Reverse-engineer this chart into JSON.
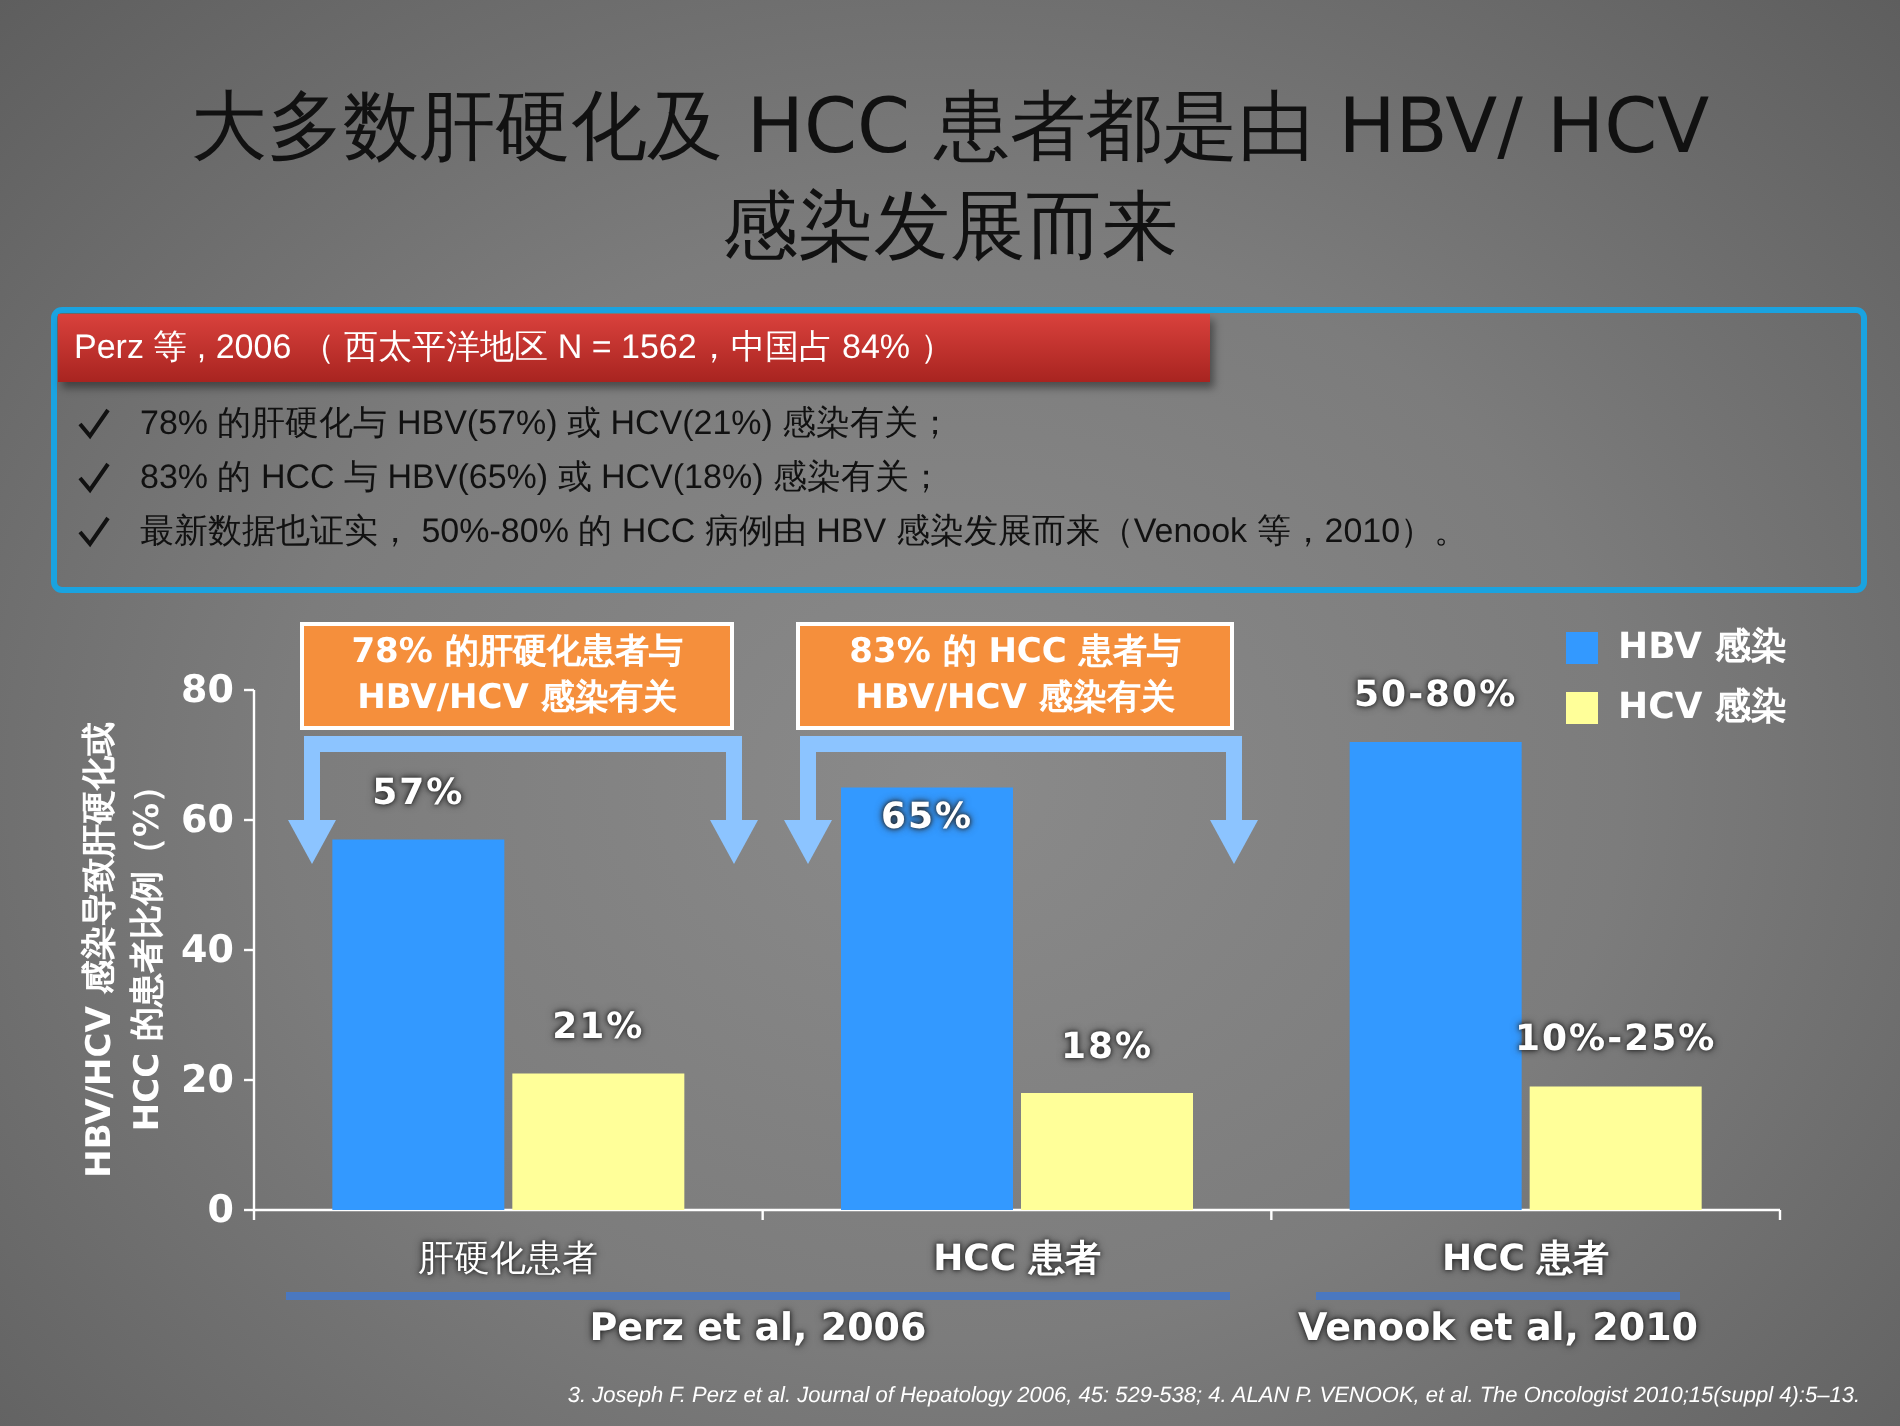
{
  "chart_data": {
    "type": "bar",
    "title": "大多数肝硬化及 HCC 患者都是由 HBV/ HCV 感染发展而来",
    "ylabel": "HBV/HCV 感染导致肝硬化或 HCC 的患者比例（%）",
    "categories": [
      "肝硬化患者",
      "HCC 患者",
      "HCC 患者"
    ],
    "series": [
      {
        "name": "HBV 感染",
        "color": "#3399ff",
        "values": [
          57,
          65,
          72
        ],
        "value_labels": [
          "57%",
          "65%",
          null
        ]
      },
      {
        "name": "HCV 感染",
        "color": "#ffff99",
        "values": [
          21,
          18,
          19
        ],
        "value_labels": [
          "21%",
          "18%",
          null
        ]
      }
    ],
    "ylim": [
      0,
      80
    ],
    "yticks": [
      0,
      20,
      40,
      60,
      80
    ],
    "legend": "top right",
    "annotations": [
      "Perz 等 , 2006 （ 西太平洋地区  N = 1562，中国占 84% ）",
      "78% 的肝硬化与 HBV(57%) 或 HCV(21%) 感染有关；",
      "83% 的 HCC 与 HBV(65%) 或 HCV(18%) 感染有关；",
      "最新数据也证实， 50%-80% 的 HCC 病例由 HBV 感染发展而来（Venook 等，2010）。",
      "78% 的肝硬化患者与 HBV/HCV 感染有关",
      "83% 的 HCC 患者与 HBV/HCV 感染有关",
      "Perz et al, 2006",
      "Venook et al, 2010",
      "50-80%",
      "10%-25%",
      "3. Joseph F. Perz et al. Journal of Hepatology 2006, 45: 529-538; 4. ALAN P. VENOOK, et al. The Oncologist 2010;15(suppl 4):5–13."
    ]
  }
}
